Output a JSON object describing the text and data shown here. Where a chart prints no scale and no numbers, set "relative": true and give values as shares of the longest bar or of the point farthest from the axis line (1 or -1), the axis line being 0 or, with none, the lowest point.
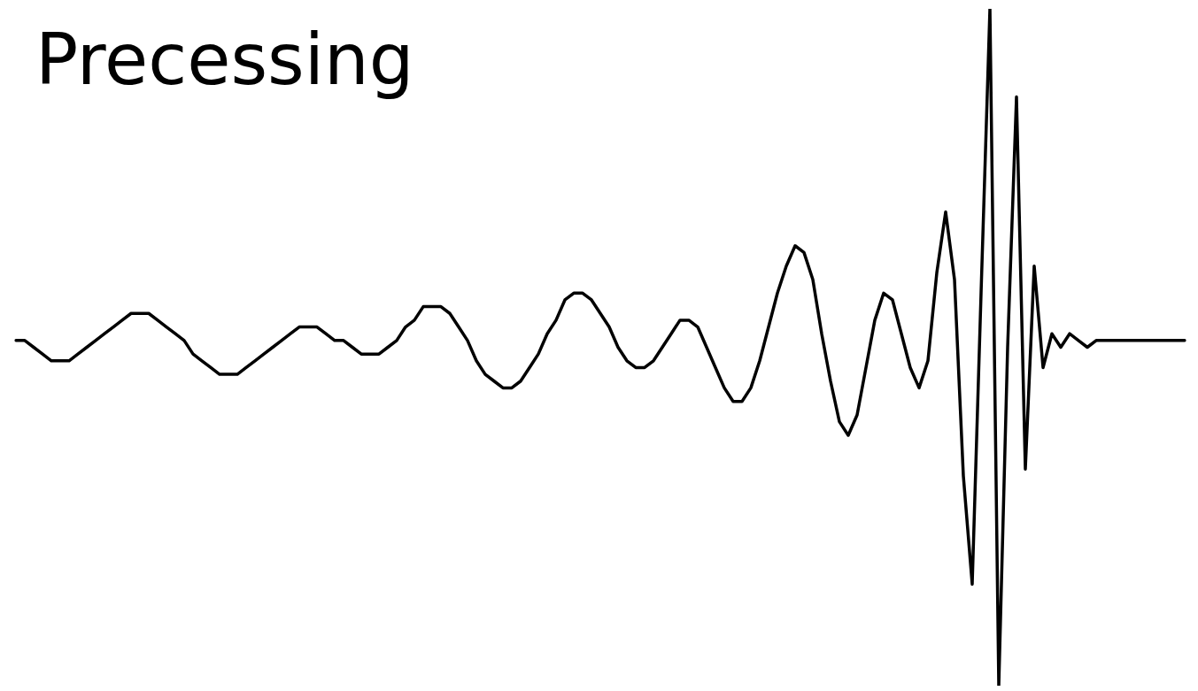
{
  "chart_data": {
    "type": "line",
    "title": "Precessing",
    "relative": true,
    "marker": "none",
    "line_style": "solid",
    "color": "#000000",
    "categories": [
      null,
      null,
      null,
      null,
      null,
      null,
      null,
      null,
      null,
      null,
      null,
      null,
      null,
      null,
      null,
      null,
      null,
      null,
      null,
      null,
      null,
      null,
      null,
      null,
      null,
      null,
      null,
      null,
      null,
      null,
      null,
      null,
      null,
      null,
      null,
      null,
      null,
      null,
      null,
      null,
      null,
      null,
      null,
      null,
      null,
      null,
      null,
      null,
      null,
      null,
      null,
      null,
      null,
      null,
      null,
      null,
      null,
      null,
      null,
      null,
      null,
      null,
      null,
      null,
      null,
      null,
      null,
      null,
      null,
      null,
      null,
      null,
      null,
      null,
      null,
      null,
      null,
      null,
      null,
      null,
      null,
      null,
      null,
      null,
      null,
      null,
      null,
      null,
      null,
      null,
      null,
      null,
      null,
      null,
      null,
      null,
      null,
      null,
      null,
      null,
      null,
      null,
      null,
      null,
      null,
      null,
      null,
      null,
      null,
      null,
      null,
      null,
      null,
      null,
      null,
      null,
      null,
      null,
      null,
      null,
      null,
      null,
      null,
      null,
      null,
      null,
      null,
      null,
      null,
      null,
      null,
      null,
      null
    ],
    "values": [
      0.51,
      0.51,
      0.5,
      0.49,
      0.48,
      0.48,
      0.48,
      0.49,
      0.5,
      0.51,
      0.52,
      0.53,
      0.54,
      0.55,
      0.55,
      0.55,
      0.54,
      0.53,
      0.52,
      0.51,
      0.49,
      0.48,
      0.47,
      0.46,
      0.46,
      0.46,
      0.47,
      0.48,
      0.49,
      0.5,
      0.51,
      0.52,
      0.53,
      0.53,
      0.53,
      0.52,
      0.51,
      0.51,
      0.5,
      0.49,
      0.49,
      0.49,
      0.5,
      0.51,
      0.53,
      0.54,
      0.56,
      0.56,
      0.56,
      0.55,
      0.53,
      0.51,
      0.48,
      0.46,
      0.45,
      0.44,
      0.44,
      0.45,
      0.47,
      0.49,
      0.52,
      0.54,
      0.57,
      0.58,
      0.58,
      0.57,
      0.55,
      0.53,
      0.5,
      0.48,
      0.47,
      0.47,
      0.48,
      0.5,
      0.52,
      0.54,
      0.54,
      0.53,
      0.5,
      0.47,
      0.44,
      0.42,
      0.42,
      0.44,
      0.48,
      0.53,
      0.58,
      0.62,
      0.65,
      0.64,
      0.6,
      0.52,
      0.45,
      0.39,
      0.37,
      0.4,
      0.47,
      0.54,
      0.58,
      0.57,
      0.52,
      0.47,
      0.44,
      0.48,
      0.61,
      0.7,
      0.6,
      0.31,
      0.15,
      0.58,
      1,
      0,
      0.5,
      0.87,
      0.32,
      0.62,
      0.47,
      0.52,
      0.5,
      0.52,
      0.51,
      0.5,
      0.51,
      0.51,
      0.51,
      0.51,
      0.51,
      0.51,
      0.51,
      0.51,
      0.51,
      0.51,
      0.51
    ]
  }
}
